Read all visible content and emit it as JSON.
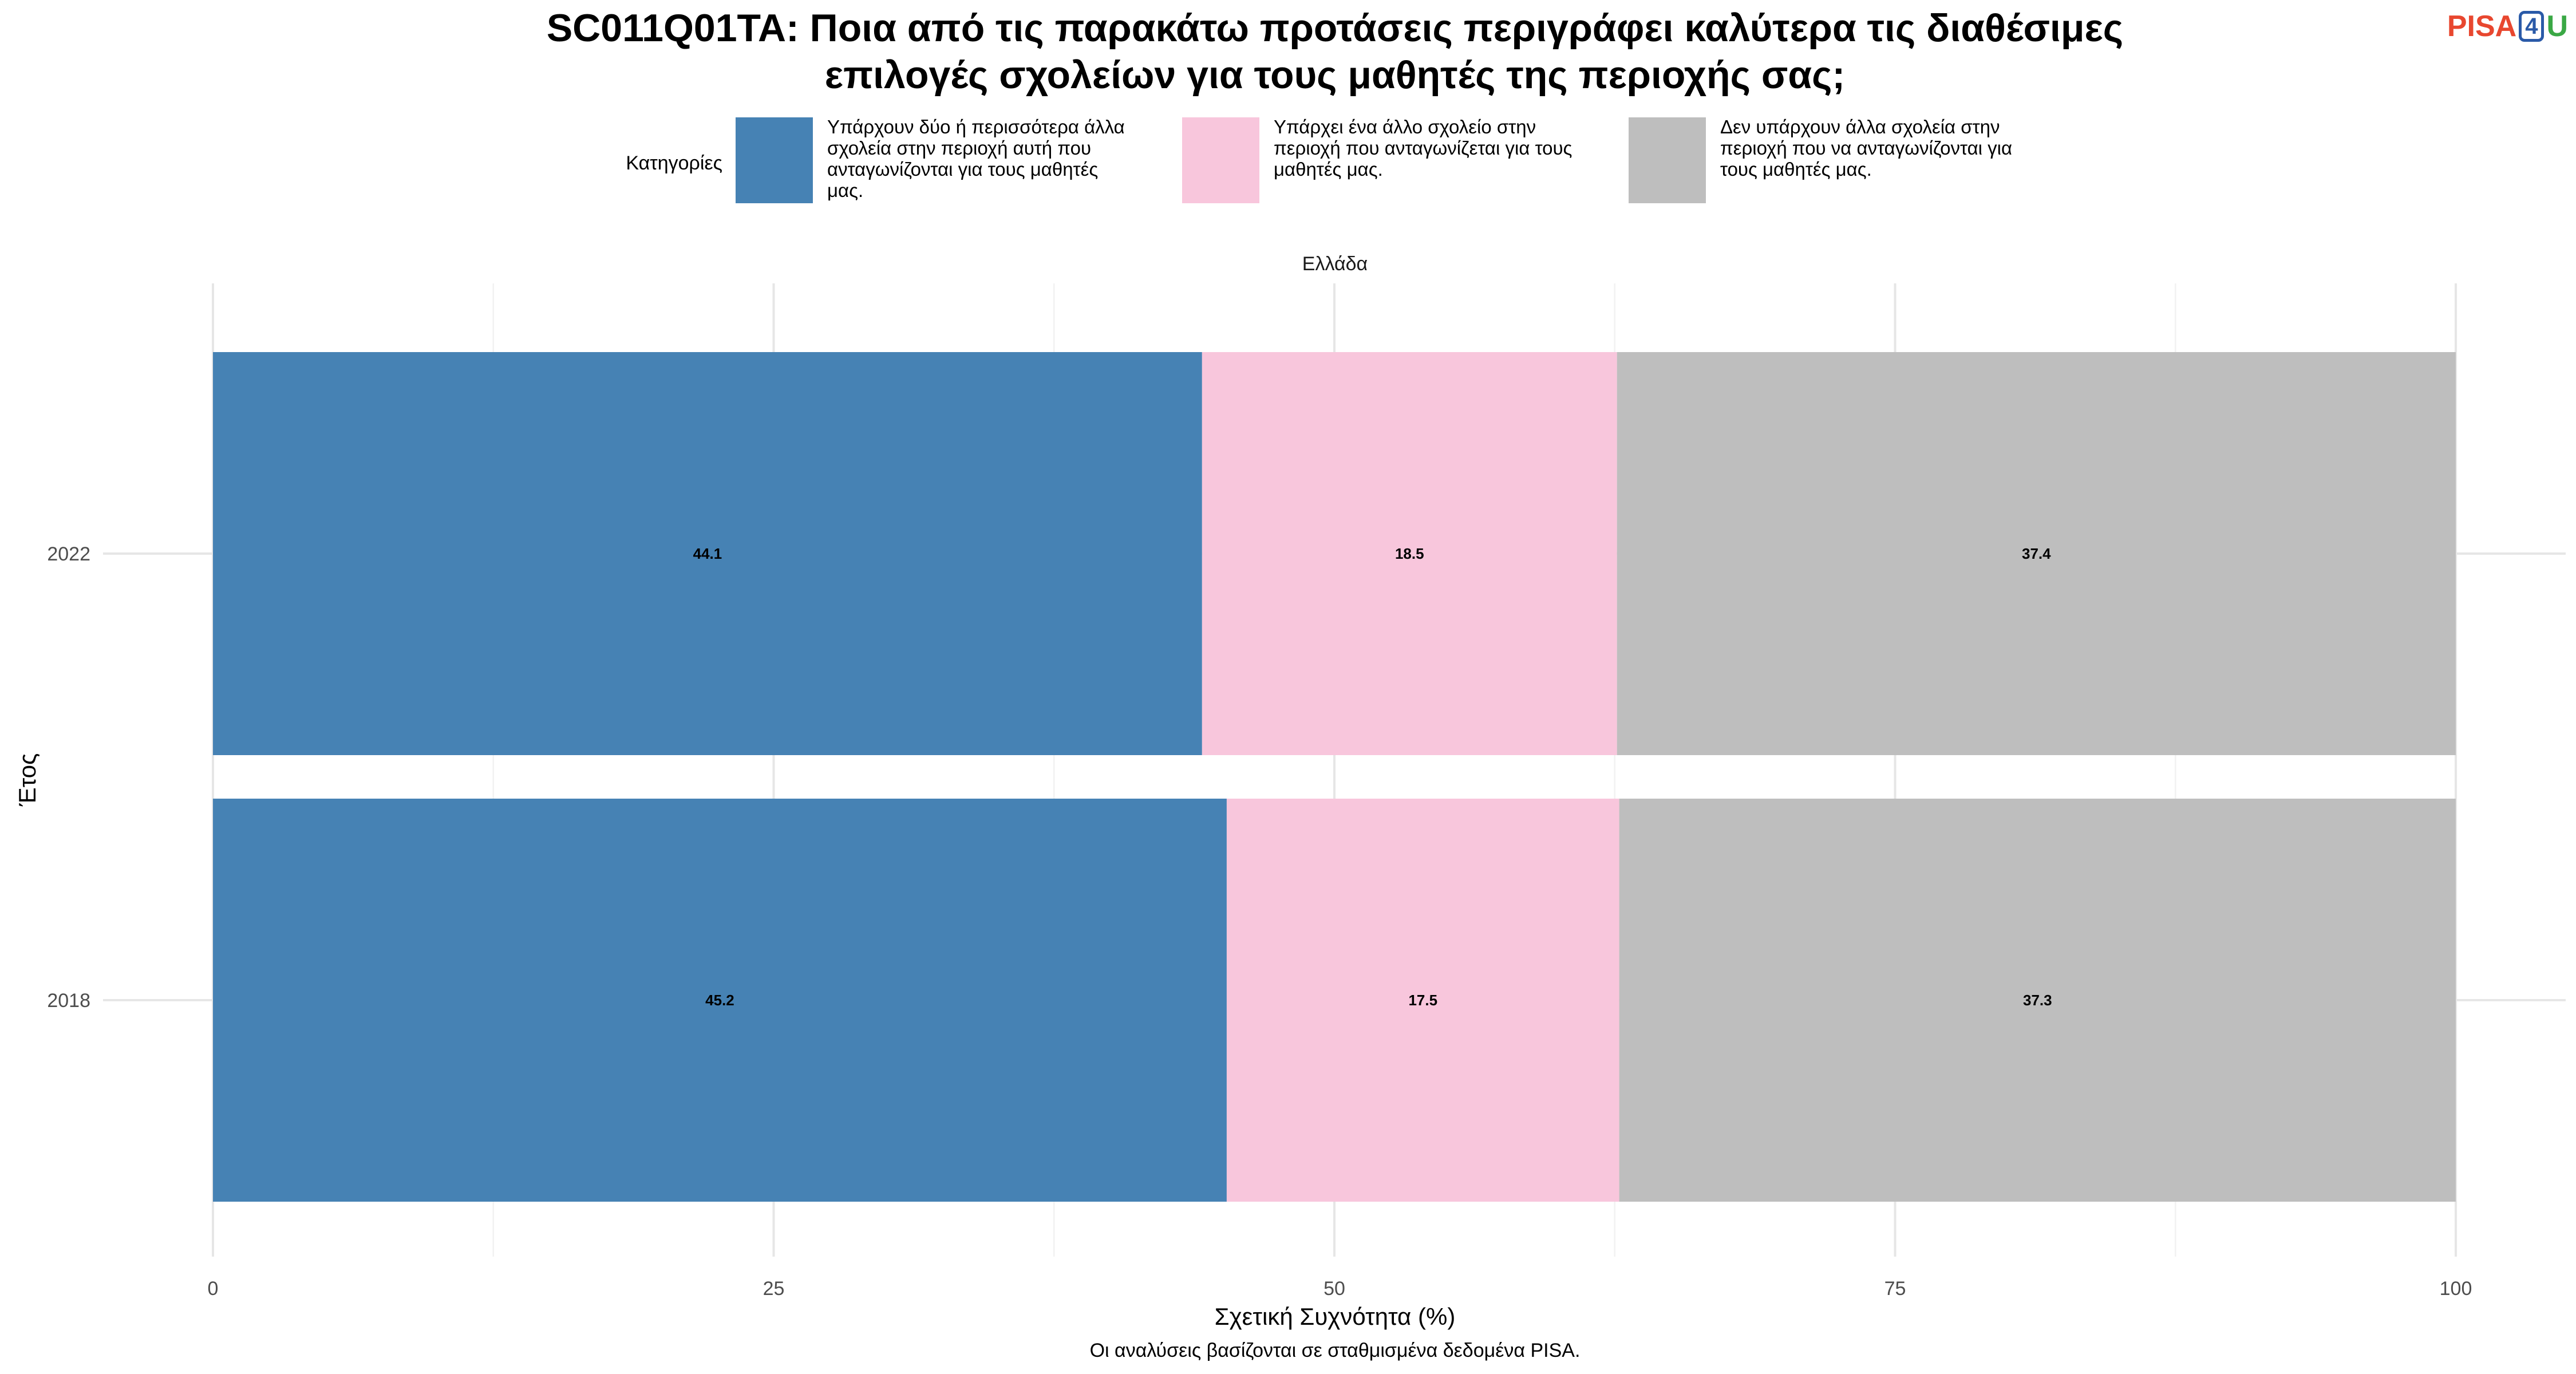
{
  "logo": {
    "part1": "PISA",
    "part2": "4",
    "part3": "U",
    "colors": {
      "part1": "#e8472f",
      "part2": "#2a5aa8",
      "part3": "#3aa845"
    }
  },
  "chart_data": {
    "type": "bar",
    "orientation": "horizontal",
    "stacked": true,
    "title_lines": [
      "SC011Q01TA: Ποια από τις παρακάτω προτάσεις περιγράφει καλύτερα τις διαθέσιμες",
      "επιλογές σχολείων για τους μαθητές της περιοχής σας;"
    ],
    "facet_label": "Ελλάδα",
    "xlabel": "Σχετική Συχνότητα (%)",
    "ylabel": "Έτος",
    "caption": "Οι αναλύσεις βασίζονται σε σταθμισμένα δεδομένα PISA.",
    "xlim": [
      0,
      100
    ],
    "xticks": [
      0,
      25,
      50,
      75,
      100
    ],
    "grid": true,
    "legend": {
      "position": "top",
      "title": "Κατηγορίες",
      "items": [
        {
          "color": "#4682b4",
          "label_lines": [
            "Υπάρχουν δύο ή περισσότερα άλλα",
            "σχολεία στην περιοχή αυτή που",
            "ανταγωνίζονται για τους μαθητές",
            "μας."
          ]
        },
        {
          "color": "#f8c6dc",
          "label_lines": [
            "Υπάρχει ένα άλλο σχολείο στην",
            "περιοχή που ανταγωνίζεται για τους",
            "μαθητές μας."
          ]
        },
        {
          "color": "#bebebe",
          "label_lines": [
            "Δεν υπάρχουν άλλα σχολεία στην",
            "περιοχή που να ανταγωνίζονται για",
            "τους μαθητές μας."
          ]
        }
      ]
    },
    "categories": [
      "2022",
      "2018"
    ],
    "series": [
      {
        "color": "#4682b4",
        "values": [
          44.1,
          45.2
        ],
        "labels": [
          "44.1",
          "45.2"
        ]
      },
      {
        "color": "#f8c6dc",
        "values": [
          18.5,
          17.5
        ],
        "labels": [
          "18.5",
          "17.5"
        ]
      },
      {
        "color": "#bebebe",
        "values": [
          37.4,
          37.3
        ],
        "labels": [
          "37.4",
          "37.3"
        ]
      }
    ]
  }
}
